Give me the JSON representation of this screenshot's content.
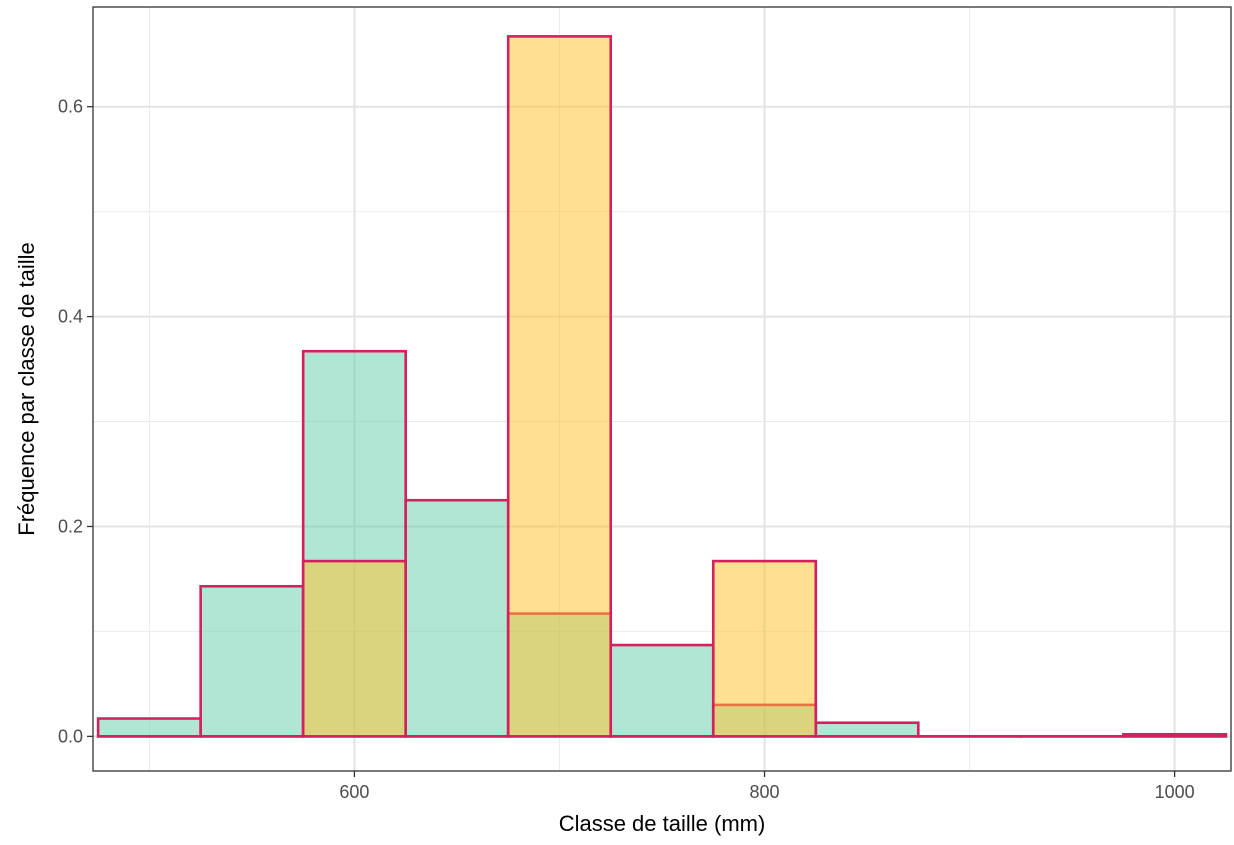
{
  "chart_data": {
    "type": "bar",
    "title": "",
    "xlabel": "Classe de taille (mm)",
    "ylabel": "Fréquence par classe de taille",
    "xlim": [
      472.5,
      1027.5
    ],
    "ylim": [
      -0.033,
      0.695
    ],
    "x_ticks": [
      600,
      800,
      1000
    ],
    "y_ticks": [
      0.0,
      0.2,
      0.4,
      0.6
    ],
    "y_tick_labels": [
      "0.0",
      "0.2",
      "0.4",
      "0.6"
    ],
    "grid": true,
    "legend": "none",
    "bin_width": 50,
    "series": [
      {
        "fill": "#66CDAA",
        "fill_opacity": 0.5,
        "outline": "#D6205E",
        "bins": [
          {
            "x": 500,
            "y": 0.017
          },
          {
            "x": 550,
            "y": 0.143
          },
          {
            "x": 600,
            "y": 0.367
          },
          {
            "x": 650,
            "y": 0.225
          },
          {
            "x": 700,
            "y": 0.117
          },
          {
            "x": 750,
            "y": 0.087
          },
          {
            "x": 800,
            "y": 0.03
          },
          {
            "x": 850,
            "y": 0.013
          },
          {
            "x": 900,
            "y": 0.0
          },
          {
            "x": 950,
            "y": 0.0
          },
          {
            "x": 1000,
            "y": 0.002
          }
        ]
      },
      {
        "fill": "#FFC125",
        "fill_opacity": 0.5,
        "outline": "#D6205E",
        "bins": [
          {
            "x": 500,
            "y": 0.0
          },
          {
            "x": 550,
            "y": 0.0
          },
          {
            "x": 600,
            "y": 0.167
          },
          {
            "x": 650,
            "y": 0.0
          },
          {
            "x": 700,
            "y": 0.667
          },
          {
            "x": 750,
            "y": 0.0
          },
          {
            "x": 800,
            "y": 0.167
          },
          {
            "x": 850,
            "y": 0.0
          },
          {
            "x": 900,
            "y": 0.0
          },
          {
            "x": 950,
            "y": 0.0
          },
          {
            "x": 1000,
            "y": 0.0
          }
        ]
      }
    ]
  }
}
